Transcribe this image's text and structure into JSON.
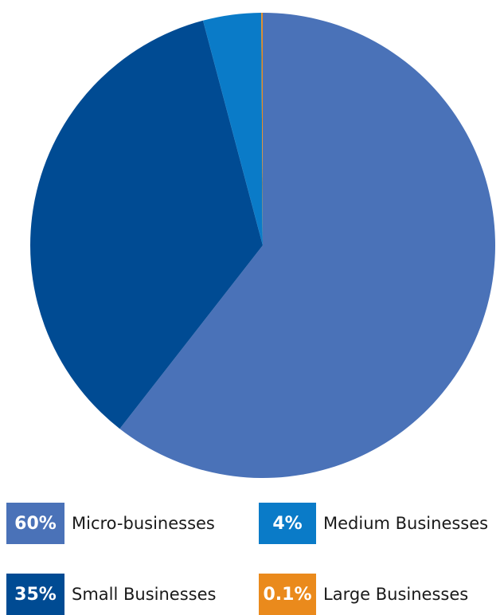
{
  "chart_data": {
    "type": "pie",
    "slices": [
      {
        "label": "Micro-businesses",
        "value": 60,
        "pct_text": "60%",
        "color": "#4a72b8"
      },
      {
        "label": "Small Businesses",
        "value": 35,
        "pct_text": "35%",
        "color": "#004b93"
      },
      {
        "label": "Medium Businesses",
        "value": 4,
        "pct_text": "4%",
        "color": "#0a7bc8"
      },
      {
        "label": "Large Businesses",
        "value": 0.1,
        "pct_text": "0.1%",
        "color": "#ea8a1c"
      }
    ]
  }
}
